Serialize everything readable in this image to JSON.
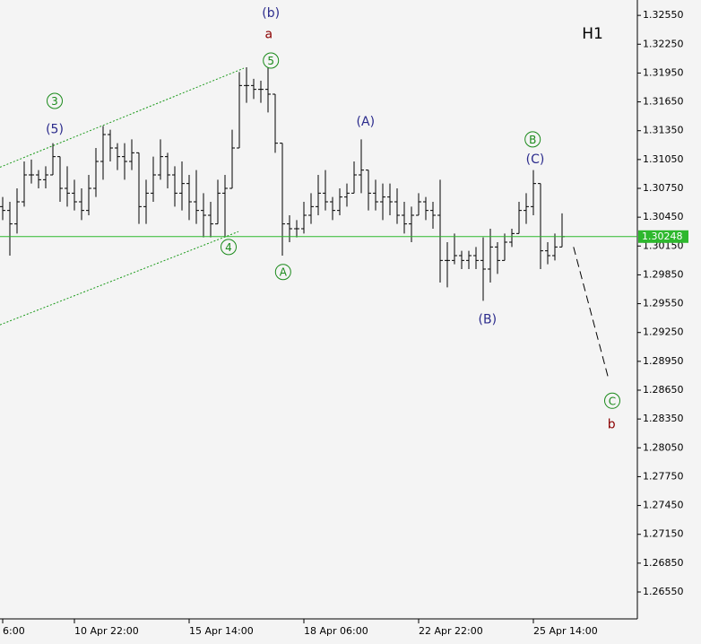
{
  "chart_data": {
    "type": "ohlc",
    "timeframe": "H1",
    "bar_color": "#000000",
    "xlim": [
      -0.375,
      88.375
    ],
    "ylim": [
      1.2627,
      1.3271
    ],
    "xticks": [
      {
        "value": 0,
        "label": "6:00"
      },
      {
        "value": 10,
        "label": "10 Apr 22:00"
      },
      {
        "value": 26,
        "label": "15 Apr 14:00"
      },
      {
        "value": 42,
        "label": "18 Apr 06:00"
      },
      {
        "value": 58,
        "label": "22 Apr 22:00"
      },
      {
        "value": 74,
        "label": "25 Apr 14:00"
      }
    ],
    "yticks": [
      {
        "value": 1.3255,
        "label": "1.32550"
      },
      {
        "value": 1.3225,
        "label": "1.32250"
      },
      {
        "value": 1.3195,
        "label": "1.31950"
      },
      {
        "value": 1.3165,
        "label": "1.31650"
      },
      {
        "value": 1.3135,
        "label": "1.31350"
      },
      {
        "value": 1.3105,
        "label": "1.31050"
      },
      {
        "value": 1.3075,
        "label": "1.30750"
      },
      {
        "value": 1.3045,
        "label": "1.30450"
      },
      {
        "value": 1.3015,
        "label": "1.30150"
      },
      {
        "value": 1.2985,
        "label": "1.29850"
      },
      {
        "value": 1.2955,
        "label": "1.29550"
      },
      {
        "value": 1.2925,
        "label": "1.29250"
      },
      {
        "value": 1.2895,
        "label": "1.28950"
      },
      {
        "value": 1.2865,
        "label": "1.28650"
      },
      {
        "value": 1.2835,
        "label": "1.28350"
      },
      {
        "value": 1.2805,
        "label": "1.28050"
      },
      {
        "value": 1.2775,
        "label": "1.27750"
      },
      {
        "value": 1.2745,
        "label": "1.27450"
      },
      {
        "value": 1.2715,
        "label": "1.27150"
      },
      {
        "value": 1.2685,
        "label": "1.26850"
      },
      {
        "value": 1.2655,
        "label": "1.26550"
      }
    ],
    "open": [
      1.3056,
      1.3052,
      1.3038,
      1.3061,
      1.3089,
      1.3089,
      1.3084,
      1.3089,
      1.3108,
      1.3075,
      1.307,
      1.3061,
      1.3052,
      1.3075,
      1.3103,
      1.3131,
      1.3117,
      1.3108,
      1.3103,
      1.3112,
      1.3056,
      1.307,
      1.3089,
      1.3108,
      1.3089,
      1.307,
      1.308,
      1.3061,
      1.3052,
      1.3047,
      1.3038,
      1.307,
      1.3075,
      1.3117,
      1.3182,
      1.3182,
      1.3178,
      1.3178,
      1.3173,
      1.3122,
      1.3038,
      1.3033,
      1.3033,
      1.3047,
      1.3056,
      1.307,
      1.3061,
      1.3052,
      1.3066,
      1.307,
      1.3089,
      1.3094,
      1.307,
      1.3061,
      1.3066,
      1.3061,
      1.3047,
      1.3038,
      1.3047,
      1.3061,
      1.3052,
      1.3047,
      1.3,
      1.3,
      1.3005,
      1.3,
      1.3005,
      1.3,
      1.2991,
      1.3014,
      1.3,
      1.3019,
      1.3028,
      1.3052,
      1.3056,
      1.308,
      1.301,
      1.3005,
      1.3014
    ],
    "high": [
      1.3066,
      1.3061,
      1.3075,
      1.3103,
      1.3105,
      1.3094,
      1.3098,
      1.3122,
      1.3108,
      1.3098,
      1.3084,
      1.3075,
      1.3089,
      1.3117,
      1.314,
      1.3136,
      1.3122,
      1.3122,
      1.3126,
      1.3112,
      1.3084,
      1.3108,
      1.3126,
      1.3112,
      1.3098,
      1.3103,
      1.3089,
      1.3094,
      1.307,
      1.3061,
      1.3084,
      1.3089,
      1.3136,
      1.3196,
      1.3201,
      1.3189,
      1.3187,
      1.3201,
      1.3173,
      1.3122,
      1.3047,
      1.3042,
      1.3061,
      1.307,
      1.3089,
      1.3094,
      1.3066,
      1.3075,
      1.308,
      1.3103,
      1.3126,
      1.3094,
      1.3084,
      1.308,
      1.308,
      1.3075,
      1.3061,
      1.3056,
      1.307,
      1.3066,
      1.3061,
      1.3084,
      1.3019,
      1.3028,
      1.301,
      1.301,
      1.3014,
      1.3024,
      1.3033,
      1.3019,
      1.3028,
      1.3033,
      1.3061,
      1.307,
      1.3094,
      1.308,
      1.3019,
      1.3028,
      1.3049
    ],
    "low": [
      1.3042,
      1.3005,
      1.3028,
      1.3056,
      1.308,
      1.3075,
      1.3075,
      1.3089,
      1.3061,
      1.3056,
      1.3052,
      1.3042,
      1.3047,
      1.3066,
      1.3084,
      1.3103,
      1.3094,
      1.3084,
      1.3094,
      1.3038,
      1.3038,
      1.3061,
      1.3084,
      1.3075,
      1.3056,
      1.3052,
      1.3042,
      1.3038,
      1.3024,
      1.3024,
      1.3038,
      1.3024,
      1.3075,
      1.3117,
      1.3164,
      1.3168,
      1.3164,
      1.3154,
      1.3112,
      1.3005,
      1.3019,
      1.3024,
      1.3028,
      1.3038,
      1.3047,
      1.3052,
      1.3042,
      1.3047,
      1.3056,
      1.307,
      1.307,
      1.3052,
      1.3052,
      1.3042,
      1.3047,
      1.3038,
      1.3028,
      1.3019,
      1.3047,
      1.3042,
      1.3033,
      1.2977,
      1.2972,
      1.2996,
      1.2991,
      1.2991,
      1.2991,
      1.2958,
      1.2977,
      1.2986,
      1.3,
      1.3014,
      1.3028,
      1.3038,
      1.3047,
      1.2991,
      1.2996,
      1.3,
      1.3014
    ],
    "close": [
      1.3052,
      1.3038,
      1.3061,
      1.3089,
      1.3089,
      1.3084,
      1.3089,
      1.3108,
      1.3075,
      1.307,
      1.3061,
      1.3052,
      1.3075,
      1.3103,
      1.3131,
      1.3117,
      1.3108,
      1.3103,
      1.3112,
      1.3056,
      1.307,
      1.3089,
      1.3108,
      1.3089,
      1.307,
      1.308,
      1.3061,
      1.3052,
      1.3047,
      1.3038,
      1.307,
      1.3075,
      1.3117,
      1.3182,
      1.3182,
      1.3178,
      1.3178,
      1.3173,
      1.3122,
      1.3038,
      1.3033,
      1.3033,
      1.3047,
      1.3056,
      1.307,
      1.3061,
      1.3052,
      1.3066,
      1.307,
      1.3089,
      1.3094,
      1.307,
      1.3061,
      1.3066,
      1.3061,
      1.3047,
      1.3038,
      1.3047,
      1.3061,
      1.3052,
      1.3047,
      1.3,
      1.3,
      1.3005,
      1.3,
      1.3005,
      1.3,
      1.2991,
      1.3014,
      1.3,
      1.3019,
      1.3028,
      1.3052,
      1.3056,
      1.308,
      1.301,
      1.3005,
      1.3014,
      1.30248
    ],
    "price_line": {
      "value": 1.30248,
      "color": "#2db82d"
    },
    "lines": [
      {
        "x": [
          -0.375,
          33.625
        ],
        "y": [
          1.3097,
          1.32
        ],
        "color": "#1a9a1a",
        "dash": "2,2"
      },
      {
        "x": [
          -0.375,
          32.875
        ],
        "y": [
          1.2933,
          1.303
        ],
        "color": "#1a9a1a",
        "dash": "2,2"
      },
      {
        "x": [
          79.6,
          84.4
        ],
        "y": [
          1.3014,
          1.2879
        ],
        "color": "#000000",
        "dash": "9,5"
      }
    ],
    "annotations": [
      {
        "text": "(b)",
        "x": 37.4,
        "y": 1.3258,
        "color": "#2b2b8c",
        "circled": false
      },
      {
        "text": "a",
        "x": 37.1,
        "y": 1.3236,
        "color": "#8b0000",
        "circled": false
      },
      {
        "text": "5",
        "x": 37.4,
        "y": 1.3208,
        "color": "#1a8a1a",
        "circled": true
      },
      {
        "text": "3",
        "x": 7.25,
        "y": 1.3166,
        "color": "#1a8a1a",
        "circled": true
      },
      {
        "text": "(5)",
        "x": 7.25,
        "y": 1.3137,
        "color": "#2b2b8c",
        "circled": false
      },
      {
        "text": "(A)",
        "x": 50.6,
        "y": 1.3145,
        "color": "#2b2b8c",
        "circled": false
      },
      {
        "text": "4",
        "x": 31.5,
        "y": 1.3014,
        "color": "#1a8a1a",
        "circled": true
      },
      {
        "text": "A",
        "x": 39.1,
        "y": 1.2988,
        "color": "#1a8a1a",
        "circled": true
      },
      {
        "text": "B",
        "x": 73.9,
        "y": 1.3126,
        "color": "#1a8a1a",
        "circled": true
      },
      {
        "text": "(C)",
        "x": 74.25,
        "y": 1.3106,
        "color": "#2b2b8c",
        "circled": false
      },
      {
        "text": "(B)",
        "x": 67.6,
        "y": 1.2939,
        "color": "#2b2b8c",
        "circled": false
      },
      {
        "text": "C",
        "x": 85,
        "y": 1.2854,
        "color": "#1a8a1a",
        "circled": true
      },
      {
        "text": "b",
        "x": 84.9,
        "y": 1.283,
        "color": "#8b0000",
        "circled": false
      }
    ]
  }
}
